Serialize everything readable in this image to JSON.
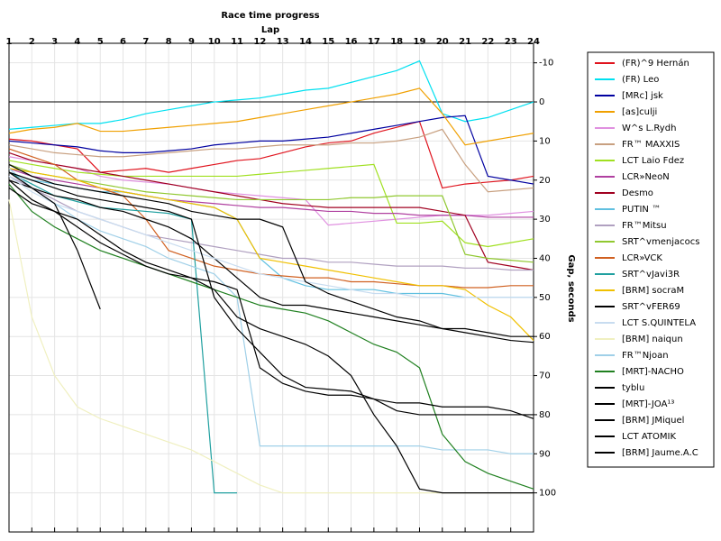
{
  "chart_data": {
    "type": "line",
    "title": "Race time progress",
    "x_label": "Lap",
    "y_label": "Gap, seconds",
    "x": [
      1,
      2,
      3,
      4,
      5,
      6,
      7,
      8,
      9,
      10,
      11,
      12,
      13,
      14,
      15,
      16,
      17,
      18,
      19,
      20,
      21,
      22,
      23,
      24
    ],
    "xlim": [
      1,
      24
    ],
    "xticks": [
      1,
      2,
      3,
      4,
      5,
      6,
      7,
      8,
      9,
      10,
      11,
      12,
      13,
      14,
      15,
      16,
      17,
      18,
      19,
      20,
      21,
      22,
      23,
      24
    ],
    "ylim": [
      110,
      -15
    ],
    "yticks": [
      -10,
      0,
      10,
      20,
      30,
      40,
      50,
      60,
      70,
      80,
      90,
      100
    ],
    "grid": true,
    "hline": 0,
    "legend": "right",
    "series": [
      {
        "name": "(FR)^9 Hernán",
        "color": "#e0141e",
        "values": [
          9.5,
          10,
          11,
          12,
          18,
          17.5,
          17,
          18,
          17,
          16,
          15,
          14.5,
          13,
          11.5,
          10.5,
          10,
          8,
          6.5,
          5,
          22,
          21,
          20.5,
          20,
          19
        ]
      },
      {
        "name": "(FR) Leo",
        "color": "#00e0f0",
        "values": [
          7,
          6.5,
          6,
          5.5,
          5.5,
          4.5,
          3,
          2,
          1,
          0,
          -0.5,
          -1,
          -2,
          -3,
          -3.5,
          -5,
          -6.5,
          -8,
          -10.5,
          3,
          5,
          4,
          2,
          0
        ]
      },
      {
        "name": "[MRc] jsk",
        "color": "#0000a0",
        "values": [
          10,
          10.5,
          11,
          11.5,
          12.5,
          13,
          13,
          12.5,
          12,
          11,
          10.5,
          10,
          10,
          9.5,
          9,
          8,
          7,
          6,
          5,
          4,
          3.5,
          19,
          20,
          21
        ]
      },
      {
        "name": "[as]culji",
        "color": "#f0a000",
        "values": [
          8,
          7,
          6.5,
          5.5,
          7.5,
          7.5,
          7,
          6.5,
          6,
          5.5,
          5,
          4,
          3,
          2,
          1,
          0,
          -1,
          -2,
          -3.5,
          3,
          11,
          10,
          9,
          8
        ]
      },
      {
        "name": "W^s L.Rydh",
        "color": "#e090e0",
        "values": [
          14,
          15,
          16,
          17,
          19,
          20,
          20.5,
          21,
          22,
          23,
          23.5,
          24,
          24.5,
          25,
          31.5,
          31,
          30.5,
          30,
          29.5,
          29,
          29,
          29,
          28.5,
          28
        ]
      },
      {
        "name": "FR™ MAXXIS",
        "color": "#c8a080",
        "values": [
          11,
          12,
          13,
          13.5,
          14,
          14,
          13.5,
          13,
          12.5,
          12,
          12,
          11.5,
          11,
          11,
          11,
          10.5,
          10.5,
          10,
          9,
          7,
          16,
          23,
          22.5,
          22
        ]
      },
      {
        "name": "LCT Laio Fdez",
        "color": "#a0e020",
        "values": [
          15,
          16,
          17,
          18,
          18.5,
          19,
          19,
          19,
          19,
          19,
          19,
          18.5,
          18,
          17.5,
          17,
          16.5,
          16,
          31,
          31,
          30.5,
          36,
          37,
          36,
          35
        ]
      },
      {
        "name": "LCR»NeoN",
        "color": "#b040a0",
        "values": [
          17,
          19,
          20,
          21,
          22,
          23,
          24,
          25,
          25.5,
          26,
          26.5,
          27,
          27,
          27.5,
          28,
          28,
          28.5,
          28.5,
          29,
          29,
          29,
          29.5,
          29.5,
          29.5
        ]
      },
      {
        "name": "Desmo",
        "color": "#a00020",
        "values": [
          13,
          15,
          16,
          17,
          18,
          19,
          20,
          21,
          22,
          23,
          24,
          25,
          26,
          26.5,
          27,
          27,
          27,
          27,
          27,
          28,
          29,
          41,
          42,
          43
        ]
      },
      {
        "name": "PUTIN ™",
        "color": "#60c0e0",
        "values": [
          18,
          20,
          21,
          22,
          23,
          23,
          24,
          25,
          26,
          27,
          30,
          40,
          45,
          47,
          48,
          48,
          48,
          49,
          49,
          49,
          50,
          50,
          50,
          50
        ]
      },
      {
        "name": "FR™Mitsu",
        "color": "#b0a0c0",
        "values": [
          19,
          22,
          25,
          28,
          30,
          32,
          34,
          35,
          36,
          37,
          38,
          39,
          40,
          40,
          41,
          41,
          41.5,
          42,
          42,
          42,
          42.5,
          42.5,
          43,
          43
        ]
      },
      {
        "name": "SRT^vmenjacocs",
        "color": "#90c830",
        "values": [
          16,
          18,
          19,
          20,
          21,
          22,
          23,
          23.5,
          24,
          24.5,
          25,
          25,
          25,
          25,
          25,
          24.5,
          24.5,
          24,
          24,
          24,
          39,
          40,
          40.5,
          41
        ]
      },
      {
        "name": "LCR»VCK",
        "color": "#d06020",
        "values": [
          12,
          14,
          16,
          20,
          22,
          24,
          30,
          38,
          40,
          42,
          43,
          44,
          44.5,
          45,
          45,
          46,
          46,
          46.5,
          47,
          47,
          47.5,
          47.5,
          47,
          47
        ]
      },
      {
        "name": "SRT^vJavi3R",
        "color": "#20a0a0",
        "values": [
          18,
          21,
          24,
          25.5,
          27,
          27.5,
          28,
          28.5,
          30,
          100,
          100,
          null,
          null,
          null,
          null,
          null,
          null,
          null,
          null,
          null,
          null,
          null,
          null,
          null
        ]
      },
      {
        "name": "[BRM] socraM",
        "color": "#f0c000",
        "values": [
          17,
          18,
          19,
          20,
          22,
          23,
          24,
          25,
          26,
          27,
          30,
          40,
          41,
          42,
          43,
          44,
          45,
          46,
          47,
          47,
          48,
          52,
          55,
          61
        ]
      },
      {
        "name": "SRT^vFER69",
        "color": "#000000",
        "values": [
          20,
          22,
          24,
          25,
          27,
          28,
          30,
          32,
          35,
          40,
          45,
          50,
          52,
          52,
          53,
          54,
          55,
          56,
          57,
          58,
          59,
          60,
          61,
          61.5
        ]
      },
      {
        "name": "LCT S.QUINTELA",
        "color": "#c8dcf0",
        "values": [
          19,
          23,
          26,
          28,
          30,
          32,
          34,
          36,
          38,
          40,
          42,
          44,
          45,
          46,
          47,
          48,
          49,
          49,
          50,
          50,
          50,
          50,
          50,
          50
        ]
      },
      {
        "name": "[BRM] naiqun",
        "color": "#f0f0c0",
        "values": [
          25,
          55,
          70,
          78,
          81,
          83,
          85,
          87,
          89,
          92,
          95,
          98,
          100,
          100,
          100,
          100,
          100,
          100,
          100,
          100,
          100,
          100,
          100,
          100
        ]
      },
      {
        "name": "FR™Njoan",
        "color": "#a0d0e8",
        "values": [
          17,
          22,
          26,
          30,
          33,
          35,
          37,
          40,
          42,
          44,
          50,
          88,
          88,
          88,
          88,
          88,
          88,
          88,
          88,
          89,
          89,
          89,
          90,
          90
        ]
      },
      {
        "name": "[MRT]-NACHO",
        "color": "#208020",
        "values": [
          21,
          28,
          32,
          35,
          38,
          40,
          42,
          44,
          46,
          48,
          50,
          52,
          53,
          54,
          56,
          59,
          62,
          64,
          68,
          85,
          92,
          95,
          97,
          99
        ]
      },
      {
        "name": "tyblu",
        "color": "#000000",
        "values": [
          18,
          22,
          26,
          38,
          53,
          null,
          null,
          null,
          null,
          null,
          null,
          null,
          null,
          null,
          null,
          null,
          null,
          null,
          null,
          null,
          null,
          null,
          null,
          null
        ]
      },
      {
        "name": "[MRT]-JOA¹³",
        "color": "#000000",
        "values": [
          20,
          25,
          28,
          32,
          36,
          39,
          42,
          44,
          45,
          46,
          48,
          68,
          72,
          74,
          75,
          75,
          76,
          77,
          77,
          78,
          78,
          78,
          79,
          81
        ]
      },
      {
        "name": "[BRM] JMiquel",
        "color": "#000000",
        "values": [
          22,
          26,
          28,
          30,
          34,
          38,
          41,
          43,
          45,
          48,
          55,
          58,
          60,
          62,
          65,
          70,
          80,
          88,
          99,
          100,
          100,
          100,
          100,
          100
        ]
      },
      {
        "name": "LCT ATOMIK",
        "color": "#000000",
        "values": [
          16,
          19,
          21,
          22,
          23,
          24,
          25,
          26,
          28,
          29,
          30,
          30,
          32,
          46,
          49,
          51,
          53,
          55,
          56,
          58,
          58,
          59,
          60,
          60
        ]
      },
      {
        "name": "[BRM] Jaume.A.C",
        "color": "#000000",
        "values": [
          18,
          20,
          22,
          24,
          25,
          26,
          27,
          28,
          30,
          50,
          58,
          64,
          70,
          73,
          73.5,
          74,
          76,
          79,
          80,
          80,
          80,
          80,
          80,
          80
        ]
      }
    ]
  }
}
